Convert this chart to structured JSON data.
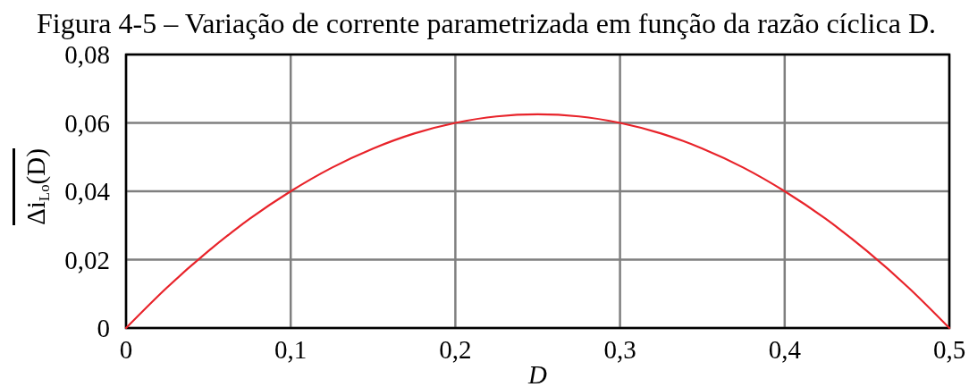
{
  "chart_data": {
    "type": "line",
    "title": "Figura 4-5 – Variação de corrente parametrizada em função da razão cíclica D.",
    "xlabel": "D",
    "ylabel": "Δi$_{Lo}$(D)",
    "x": [
      0,
      0.025,
      0.05,
      0.075,
      0.1,
      0.125,
      0.15,
      0.175,
      0.2,
      0.225,
      0.25,
      0.275,
      0.3,
      0.325,
      0.35,
      0.375,
      0.4,
      0.425,
      0.45,
      0.475,
      0.5
    ],
    "series": [
      {
        "color": "#e8232a",
        "values": [
          0,
          0.0119,
          0.0225,
          0.0319,
          0.04,
          0.0469,
          0.0525,
          0.0569,
          0.06,
          0.0619,
          0.0625,
          0.0619,
          0.06,
          0.0569,
          0.0525,
          0.0469,
          0.04,
          0.0319,
          0.0225,
          0.0119,
          0
        ]
      }
    ],
    "xlim": [
      0,
      0.5
    ],
    "ylim": [
      0,
      0.08
    ],
    "xticks": [
      0,
      {
        "value": 0.1,
        "label": "0,1"
      },
      {
        "value": 0.2,
        "label": "0,2"
      },
      {
        "value": 0.3,
        "label": "0,3"
      },
      {
        "value": 0.4,
        "label": "0,4"
      },
      {
        "value": 0.5,
        "label": "0,5"
      }
    ],
    "yticks": [
      0,
      {
        "value": 0.02,
        "label": "0,02"
      },
      {
        "value": 0.04,
        "label": "0,04"
      },
      {
        "value": 0.06,
        "label": "0,06"
      },
      {
        "value": 0.08,
        "label": "0,08"
      }
    ],
    "grid": true,
    "line_style": "solid"
  }
}
